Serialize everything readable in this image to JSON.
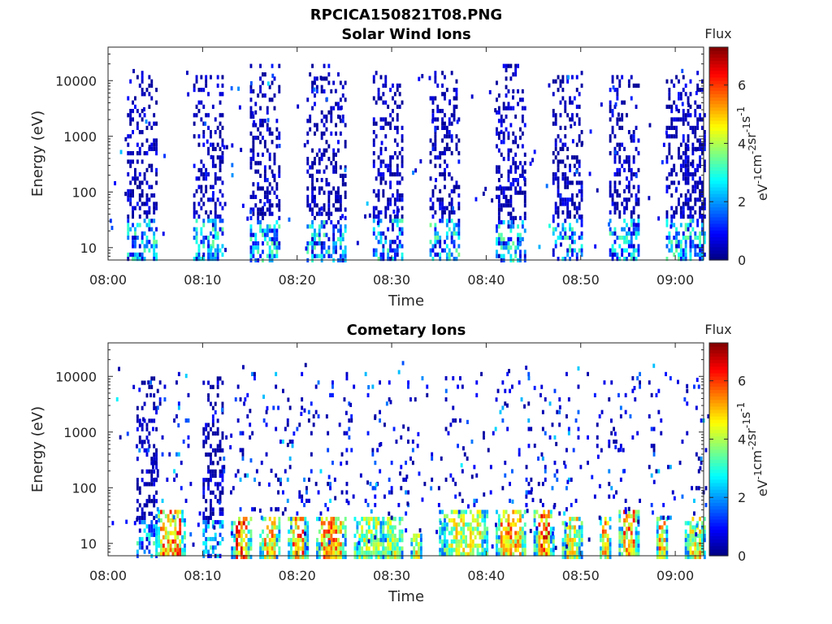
{
  "figure_title": "RPCICA150821T08.PNG",
  "colors": {
    "colormap": "jet",
    "axis": "#262626",
    "background": "#ffffff"
  },
  "chart_data": [
    {
      "type": "heatmap",
      "title": "Solar Wind Ions",
      "xlabel": "Time",
      "ylabel": "Energy (eV)",
      "x_ticks": [
        "08:00",
        "08:10",
        "08:20",
        "08:30",
        "08:40",
        "08:50",
        "09:00"
      ],
      "x_range": [
        "08:00",
        "09:03"
      ],
      "y_scale": "log",
      "y_ticks": [
        10,
        100,
        1000,
        10000
      ],
      "y_tick_labels": [
        "10",
        "100",
        "1000",
        "10000"
      ],
      "y_range": [
        6,
        40000
      ],
      "colorbar": {
        "title": "Flux",
        "label": "eV-1cm-2sr-1s-1",
        "label_parts": [
          [
            "eV",
            "-1"
          ],
          [
            "cm",
            "-2"
          ],
          [
            "sr",
            "-1"
          ],
          [
            "s",
            "-1"
          ]
        ],
        "range": [
          0,
          7.3
        ],
        "ticks": [
          0,
          2,
          4,
          6
        ]
      },
      "bursts": [
        {
          "start": "08:02",
          "end": "08:05",
          "energy_max": 15000,
          "flux": 0.6
        },
        {
          "start": "08:09",
          "end": "08:12",
          "energy_max": 15000,
          "flux": 0.6
        },
        {
          "start": "08:15",
          "end": "08:18",
          "energy_max": 20000,
          "flux": 0.6
        },
        {
          "start": "08:21",
          "end": "08:25",
          "energy_max": 20000,
          "flux": 0.6
        },
        {
          "start": "08:28",
          "end": "08:31",
          "energy_max": 15000,
          "flux": 0.6
        },
        {
          "start": "08:34",
          "end": "08:37",
          "energy_max": 15000,
          "flux": 0.6
        },
        {
          "start": "08:41",
          "end": "08:44",
          "energy_max": 20000,
          "flux": 0.6
        },
        {
          "start": "08:47",
          "end": "08:50",
          "energy_max": 15000,
          "flux": 0.6
        },
        {
          "start": "08:53",
          "end": "08:56",
          "energy_max": 15000,
          "flux": 0.6
        },
        {
          "start": "08:59",
          "end": "09:03",
          "energy_max": 15000,
          "flux": 0.6
        }
      ]
    },
    {
      "type": "heatmap",
      "title": "Cometary Ions",
      "xlabel": "Time",
      "ylabel": "Energy (eV)",
      "x_ticks": [
        "08:00",
        "08:10",
        "08:20",
        "08:30",
        "08:40",
        "08:50",
        "09:00"
      ],
      "x_range": [
        "08:00",
        "09:03"
      ],
      "y_scale": "log",
      "y_ticks": [
        10,
        100,
        1000,
        10000
      ],
      "y_tick_labels": [
        "10",
        "100",
        "1000",
        "10000"
      ],
      "y_range": [
        6,
        40000
      ],
      "colorbar": {
        "title": "Flux",
        "label": "eV-1cm-2sr-1s-1",
        "label_parts": [
          [
            "eV",
            "-1"
          ],
          [
            "cm",
            "-2"
          ],
          [
            "sr",
            "-1"
          ],
          [
            "s",
            "-1"
          ]
        ],
        "range": [
          0,
          7.3
        ],
        "ticks": [
          0,
          2,
          4,
          6
        ]
      },
      "bursts": [
        {
          "start": "08:03",
          "end": "08:05",
          "energy_max": 10000,
          "flux": 0.6
        },
        {
          "start": "08:05",
          "end": "08:08",
          "energy_max": 40,
          "flux": 6.5
        },
        {
          "start": "08:10",
          "end": "08:12",
          "energy_max": 10000,
          "flux": 0.6
        },
        {
          "start": "08:13",
          "end": "08:15",
          "energy_max": 30,
          "flux": 6.8
        },
        {
          "start": "08:16",
          "end": "08:18",
          "energy_max": 30,
          "flux": 6.0
        },
        {
          "start": "08:19",
          "end": "08:21",
          "energy_max": 30,
          "flux": 6.5
        },
        {
          "start": "08:22",
          "end": "08:25",
          "energy_max": 30,
          "flux": 6.3
        },
        {
          "start": "08:26",
          "end": "08:29",
          "energy_max": 30,
          "flux": 4.8
        },
        {
          "start": "08:29",
          "end": "08:31",
          "energy_max": 30,
          "flux": 5.0
        },
        {
          "start": "08:32",
          "end": "08:33",
          "energy_max": 15,
          "flux": 5.5
        },
        {
          "start": "08:35",
          "end": "08:40",
          "energy_max": 40,
          "flux": 5.2
        },
        {
          "start": "08:41",
          "end": "08:44",
          "energy_max": 40,
          "flux": 6.2
        },
        {
          "start": "08:45",
          "end": "08:47",
          "energy_max": 40,
          "flux": 6.9
        },
        {
          "start": "08:48",
          "end": "08:50",
          "energy_max": 30,
          "flux": 5.5
        },
        {
          "start": "08:52",
          "end": "08:53",
          "energy_max": 30,
          "flux": 6.0
        },
        {
          "start": "08:54",
          "end": "08:56",
          "energy_max": 40,
          "flux": 6.5
        },
        {
          "start": "08:58",
          "end": "08:59",
          "energy_max": 30,
          "flux": 6.3
        },
        {
          "start": "09:01",
          "end": "09:03",
          "energy_max": 30,
          "flux": 5.5
        }
      ]
    }
  ]
}
